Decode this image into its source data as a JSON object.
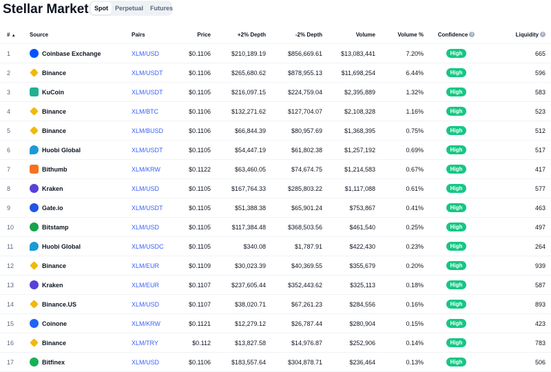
{
  "page": {
    "title": "Stellar Markets",
    "tabs": [
      "Spot",
      "Perpetual",
      "Futures"
    ],
    "active_tab": "Spot"
  },
  "table": {
    "headers": {
      "rank": "#",
      "sort_glyph": "▲",
      "source": "Source",
      "pairs": "Pairs",
      "price": "Price",
      "plus_depth": "+2% Depth",
      "minus_depth": "-2% Depth",
      "volume": "Volume",
      "volume_pct": "Volume %",
      "confidence": "Confidence",
      "liquidity": "Liquidity",
      "info_glyph": "i"
    },
    "rows": [
      {
        "rank": "1",
        "source": "Coinbase Exchange",
        "icon": "coinbase-icon",
        "icon_color": "#0052ff",
        "icon_shape": "circle",
        "pair": "XLM/USD",
        "price": "$0.1106",
        "plus_depth": "$210,189.19",
        "minus_depth": "$856,669.61",
        "volume": "$13,083,441",
        "volume_pct": "7.20%",
        "confidence": "High",
        "liquidity": "665"
      },
      {
        "rank": "2",
        "source": "Binance",
        "icon": "binance-icon",
        "icon_color": "#f0b90b",
        "icon_shape": "diamond",
        "pair": "XLM/USDT",
        "price": "$0.1106",
        "plus_depth": "$265,680.62",
        "minus_depth": "$878,955.13",
        "volume": "$11,698,254",
        "volume_pct": "6.44%",
        "confidence": "High",
        "liquidity": "596"
      },
      {
        "rank": "3",
        "source": "KuCoin",
        "icon": "kucoin-icon",
        "icon_color": "#23af91",
        "icon_shape": "square",
        "pair": "XLM/USDT",
        "price": "$0.1105",
        "plus_depth": "$216,097.15",
        "minus_depth": "$224,759.04",
        "volume": "$2,395,889",
        "volume_pct": "1.32%",
        "confidence": "High",
        "liquidity": "583"
      },
      {
        "rank": "4",
        "source": "Binance",
        "icon": "binance-icon",
        "icon_color": "#f0b90b",
        "icon_shape": "diamond",
        "pair": "XLM/BTC",
        "price": "$0.1106",
        "plus_depth": "$132,271.62",
        "minus_depth": "$127,704.07",
        "volume": "$2,108,328",
        "volume_pct": "1.16%",
        "confidence": "High",
        "liquidity": "523"
      },
      {
        "rank": "5",
        "source": "Binance",
        "icon": "binance-icon",
        "icon_color": "#f0b90b",
        "icon_shape": "diamond",
        "pair": "XLM/BUSD",
        "price": "$0.1106",
        "plus_depth": "$66,844.39",
        "minus_depth": "$80,957.69",
        "volume": "$1,368,395",
        "volume_pct": "0.75%",
        "confidence": "High",
        "liquidity": "512"
      },
      {
        "rank": "6",
        "source": "Huobi Global",
        "icon": "huobi-icon",
        "icon_color": "#1b9ad6",
        "icon_shape": "drop",
        "pair": "XLM/USDT",
        "price": "$0.1105",
        "plus_depth": "$54,447.19",
        "minus_depth": "$61,802.38",
        "volume": "$1,257,192",
        "volume_pct": "0.69%",
        "confidence": "High",
        "liquidity": "517"
      },
      {
        "rank": "7",
        "source": "Bithumb",
        "icon": "bithumb-icon",
        "icon_color": "#f37321",
        "icon_shape": "square",
        "pair": "XLM/KRW",
        "price": "$0.1122",
        "plus_depth": "$63,460.05",
        "minus_depth": "$74,674.75",
        "volume": "$1,214,583",
        "volume_pct": "0.67%",
        "confidence": "High",
        "liquidity": "417"
      },
      {
        "rank": "8",
        "source": "Kraken",
        "icon": "kraken-icon",
        "icon_color": "#5741d9",
        "icon_shape": "circle",
        "pair": "XLM/USD",
        "price": "$0.1105",
        "plus_depth": "$167,764.33",
        "minus_depth": "$285,803.22",
        "volume": "$1,117,088",
        "volume_pct": "0.61%",
        "confidence": "High",
        "liquidity": "577"
      },
      {
        "rank": "9",
        "source": "Gate.io",
        "icon": "gateio-icon",
        "icon_color": "#2354e6",
        "icon_shape": "circle",
        "pair": "XLM/USDT",
        "price": "$0.1105",
        "plus_depth": "$51,388.38",
        "minus_depth": "$65,901.24",
        "volume": "$753,867",
        "volume_pct": "0.41%",
        "confidence": "High",
        "liquidity": "463"
      },
      {
        "rank": "10",
        "source": "Bitstamp",
        "icon": "bitstamp-icon",
        "icon_color": "#16a34a",
        "icon_shape": "circle",
        "pair": "XLM/USD",
        "price": "$0.1105",
        "plus_depth": "$117,384.48",
        "minus_depth": "$368,503.56",
        "volume": "$461,540",
        "volume_pct": "0.25%",
        "confidence": "High",
        "liquidity": "497"
      },
      {
        "rank": "11",
        "source": "Huobi Global",
        "icon": "huobi-icon",
        "icon_color": "#1b9ad6",
        "icon_shape": "drop",
        "pair": "XLM/USDC",
        "price": "$0.1105",
        "plus_depth": "$340.08",
        "minus_depth": "$1,787.91",
        "volume": "$422,430",
        "volume_pct": "0.23%",
        "confidence": "High",
        "liquidity": "264"
      },
      {
        "rank": "12",
        "source": "Binance",
        "icon": "binance-icon",
        "icon_color": "#f0b90b",
        "icon_shape": "diamond",
        "pair": "XLM/EUR",
        "price": "$0.1109",
        "plus_depth": "$30,023.39",
        "minus_depth": "$40,369.55",
        "volume": "$355,679",
        "volume_pct": "0.20%",
        "confidence": "High",
        "liquidity": "939"
      },
      {
        "rank": "13",
        "source": "Kraken",
        "icon": "kraken-icon",
        "icon_color": "#5741d9",
        "icon_shape": "circle",
        "pair": "XLM/EUR",
        "price": "$0.1107",
        "plus_depth": "$237,605.44",
        "minus_depth": "$352,443.62",
        "volume": "$325,113",
        "volume_pct": "0.18%",
        "confidence": "High",
        "liquidity": "587"
      },
      {
        "rank": "14",
        "source": "Binance.US",
        "icon": "binance-icon",
        "icon_color": "#f0b90b",
        "icon_shape": "diamond",
        "pair": "XLM/USD",
        "price": "$0.1107",
        "plus_depth": "$38,020.71",
        "minus_depth": "$67,261.23",
        "volume": "$284,556",
        "volume_pct": "0.16%",
        "confidence": "High",
        "liquidity": "893"
      },
      {
        "rank": "15",
        "source": "Coinone",
        "icon": "coinone-icon",
        "icon_color": "#1d64f2",
        "icon_shape": "circle",
        "pair": "XLM/KRW",
        "price": "$0.1121",
        "plus_depth": "$12,279.12",
        "minus_depth": "$26,787.44",
        "volume": "$280,904",
        "volume_pct": "0.15%",
        "confidence": "High",
        "liquidity": "423"
      },
      {
        "rank": "16",
        "source": "Binance",
        "icon": "binance-icon",
        "icon_color": "#f0b90b",
        "icon_shape": "diamond",
        "pair": "XLM/TRY",
        "price": "$0.112",
        "plus_depth": "$13,827.58",
        "minus_depth": "$14,976.87",
        "volume": "$252,906",
        "volume_pct": "0.14%",
        "confidence": "High",
        "liquidity": "783"
      },
      {
        "rank": "17",
        "source": "Bitfinex",
        "icon": "bitfinex-icon",
        "icon_color": "#16b157",
        "icon_shape": "circle",
        "pair": "XLM/USD",
        "price": "$0.1106",
        "plus_depth": "$183,557.64",
        "minus_depth": "$304,878.71",
        "volume": "$236,464",
        "volume_pct": "0.13%",
        "confidence": "High",
        "liquidity": "506"
      }
    ]
  }
}
